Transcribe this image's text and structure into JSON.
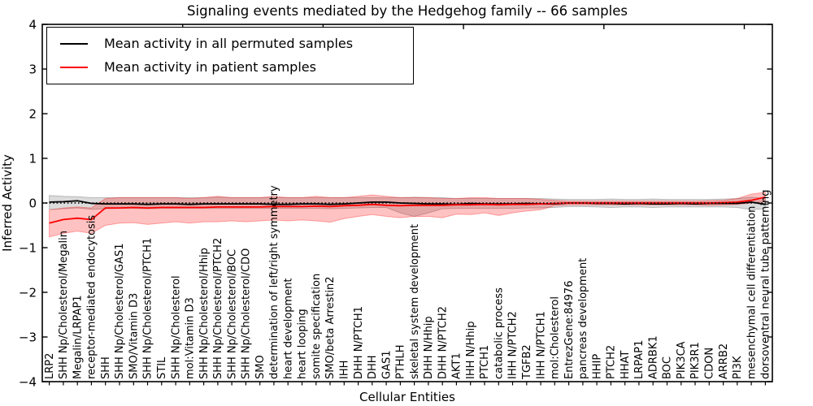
{
  "figure": {
    "title": "Signaling events mediated by the Hedgehog family -- 66 samples",
    "xlabel": "Cellular Entities",
    "ylabel": "Inferred Activity"
  },
  "legend": {
    "items": [
      {
        "label": "Mean activity in all permuted samples",
        "color": "#000000"
      },
      {
        "label": "Mean activity in patient samples",
        "color": "#ff0000"
      }
    ]
  },
  "chart_data": {
    "type": "line",
    "title": "Signaling events mediated by the Hedgehog family -- 66 samples",
    "xlabel": "Cellular Entities",
    "ylabel": "Inferred Activity",
    "ylim": [
      -4,
      4
    ],
    "xlim": [
      0,
      52
    ],
    "yticks": [
      4,
      3,
      2,
      1,
      0,
      -1,
      -2,
      -3,
      -4
    ],
    "ytick_labels": [
      "4",
      "3",
      "2",
      "1",
      "0",
      "−1",
      "−2",
      "−3",
      "−4"
    ],
    "xticks_top": [
      10,
      20,
      30,
      40,
      50
    ],
    "grid": false,
    "legend_position": "upper left",
    "categories": [
      "LRP2",
      "SHH Np/Cholesterol/Megalin",
      "Megalin/LRPAP1",
      "receptor-mediated endocytosis",
      "SHH",
      "SHH Np/Cholesterol/GAS1",
      "SMO/Vitamin D3",
      "SHH Np/Cholesterol/PTCH1",
      "STIL",
      "SHH Np/Cholesterol",
      "mol:Vitamin D3",
      "SHH Np/Cholesterol/Hhip",
      "SHH Np/Cholesterol/PTCH2",
      "SHH Np/Cholesterol/BOC",
      "SHH Np/Cholesterol/CDO",
      "SMO",
      "determination of left/right symmetry",
      "heart development",
      "heart looping",
      "somite specification",
      "SMO/beta Arrestin2",
      "IHH",
      "DHH N/PTCH1",
      "DHH",
      "GAS1",
      "PTHLH",
      "skeletal system development",
      "DHH N/Hhip",
      "DHH N/PTCH2",
      "AKT1",
      "IHH N/Hhip",
      "PTCH1",
      "catabolic process",
      "IHH N/PTCH2",
      "TGFB2",
      "IHH N/PTCH1",
      "mol:Cholesterol",
      "EntrezGene:84976",
      "pancreas development",
      "HHIP",
      "PTCH2",
      "HHAT",
      "LRPAP1",
      "ADRBK1",
      "BOC",
      "PIK3CA",
      "PIK3R1",
      "CDON",
      "ARRB2",
      "PI3K",
      "mesenchymal cell differentiation",
      "dorsoventral neural tube patterning"
    ],
    "series": [
      {
        "name": "Mean activity in all permuted samples",
        "color": "#000000",
        "line_style": "solid",
        "values": [
          0.02,
          0.03,
          0.05,
          -0.01,
          -0.02,
          -0.02,
          -0.02,
          -0.03,
          -0.02,
          -0.02,
          -0.03,
          -0.02,
          -0.02,
          -0.02,
          -0.02,
          -0.02,
          -0.03,
          -0.03,
          -0.02,
          -0.02,
          -0.03,
          -0.02,
          0.0,
          0.02,
          0.02,
          0.0,
          -0.01,
          -0.02,
          -0.02,
          -0.03,
          -0.01,
          -0.02,
          -0.02,
          -0.02,
          -0.01,
          -0.02,
          -0.02,
          0.0,
          0.0,
          -0.01,
          -0.01,
          -0.02,
          -0.01,
          -0.02,
          -0.02,
          -0.01,
          -0.02,
          -0.01,
          -0.01,
          -0.01,
          0.02,
          -0.03
        ],
        "band": {
          "name": "permuted-std-band",
          "fill_color": "#000000",
          "fill_opacity": 0.14,
          "low": [
            -0.14,
            -0.13,
            -0.11,
            -0.14,
            -0.13,
            -0.12,
            -0.12,
            -0.13,
            -0.12,
            -0.12,
            -0.12,
            -0.12,
            -0.12,
            -0.12,
            -0.12,
            -0.12,
            -0.12,
            -0.12,
            -0.12,
            -0.12,
            -0.13,
            -0.12,
            -0.11,
            -0.1,
            -0.1,
            -0.22,
            -0.3,
            -0.22,
            -0.13,
            -0.12,
            -0.12,
            -0.12,
            -0.12,
            -0.12,
            -0.11,
            -0.11,
            -0.1,
            -0.08,
            -0.08,
            -0.09,
            -0.1,
            -0.09,
            -0.09,
            -0.1,
            -0.09,
            -0.09,
            -0.09,
            -0.09,
            -0.09,
            -0.1,
            -0.15,
            -0.13
          ],
          "high": [
            0.17,
            0.15,
            0.14,
            0.12,
            0.12,
            0.12,
            0.12,
            0.12,
            0.12,
            0.12,
            0.12,
            0.12,
            0.13,
            0.12,
            0.12,
            0.12,
            0.12,
            0.12,
            0.12,
            0.12,
            0.12,
            0.12,
            0.12,
            0.12,
            0.12,
            0.12,
            0.13,
            0.12,
            0.12,
            0.1,
            0.1,
            0.1,
            0.1,
            0.1,
            0.1,
            0.1,
            0.09,
            0.08,
            0.08,
            0.08,
            0.09,
            0.08,
            0.08,
            0.09,
            0.08,
            0.08,
            0.08,
            0.08,
            0.09,
            0.1,
            0.13,
            0.1
          ]
        }
      },
      {
        "name": "Mean activity in patient samples",
        "color": "#ff0000",
        "line_style": "solid",
        "values": [
          -0.45,
          -0.37,
          -0.34,
          -0.37,
          -0.11,
          -0.11,
          -0.1,
          -0.11,
          -0.1,
          -0.1,
          -0.1,
          -0.1,
          -0.09,
          -0.09,
          -0.09,
          -0.09,
          -0.08,
          -0.08,
          -0.08,
          -0.07,
          -0.08,
          -0.06,
          -0.05,
          -0.03,
          -0.05,
          -0.06,
          -0.05,
          -0.05,
          -0.05,
          -0.04,
          -0.04,
          -0.03,
          -0.04,
          -0.03,
          -0.03,
          -0.02,
          -0.01,
          0.0,
          0.0,
          0.0,
          0.0,
          0.0,
          0.0,
          0.0,
          0.0,
          0.0,
          0.0,
          0.0,
          0.01,
          0.02,
          0.06,
          0.13
        ],
        "band": {
          "name": "patient-std-band",
          "fill_color": "#ff0000",
          "fill_opacity": 0.24,
          "low": [
            -0.76,
            -0.68,
            -0.63,
            -0.68,
            -0.5,
            -0.45,
            -0.44,
            -0.48,
            -0.45,
            -0.42,
            -0.45,
            -0.42,
            -0.42,
            -0.4,
            -0.42,
            -0.4,
            -0.38,
            -0.4,
            -0.38,
            -0.4,
            -0.43,
            -0.35,
            -0.3,
            -0.26,
            -0.3,
            -0.33,
            -0.3,
            -0.3,
            -0.33,
            -0.25,
            -0.26,
            -0.22,
            -0.28,
            -0.22,
            -0.18,
            -0.15,
            -0.06,
            -0.04,
            -0.04,
            -0.04,
            -0.04,
            -0.04,
            -0.04,
            -0.04,
            -0.04,
            -0.04,
            -0.04,
            -0.05,
            -0.04,
            -0.03,
            0.0,
            0.03
          ],
          "high": [
            -0.16,
            -0.11,
            -0.09,
            -0.11,
            0.1,
            0.12,
            0.12,
            0.12,
            0.12,
            0.12,
            0.1,
            0.12,
            0.15,
            0.12,
            0.12,
            0.12,
            0.15,
            0.12,
            0.12,
            0.15,
            0.12,
            0.12,
            0.15,
            0.18,
            0.15,
            0.12,
            0.12,
            0.12,
            0.1,
            0.1,
            0.12,
            0.12,
            0.1,
            0.1,
            0.1,
            0.08,
            0.06,
            0.04,
            0.04,
            0.04,
            0.04,
            0.04,
            0.04,
            0.04,
            0.04,
            0.04,
            0.04,
            0.05,
            0.06,
            0.1,
            0.2,
            0.24
          ]
        }
      }
    ],
    "zero_line": {
      "value": 0,
      "color": "#000000",
      "line_style": "dotted"
    }
  }
}
